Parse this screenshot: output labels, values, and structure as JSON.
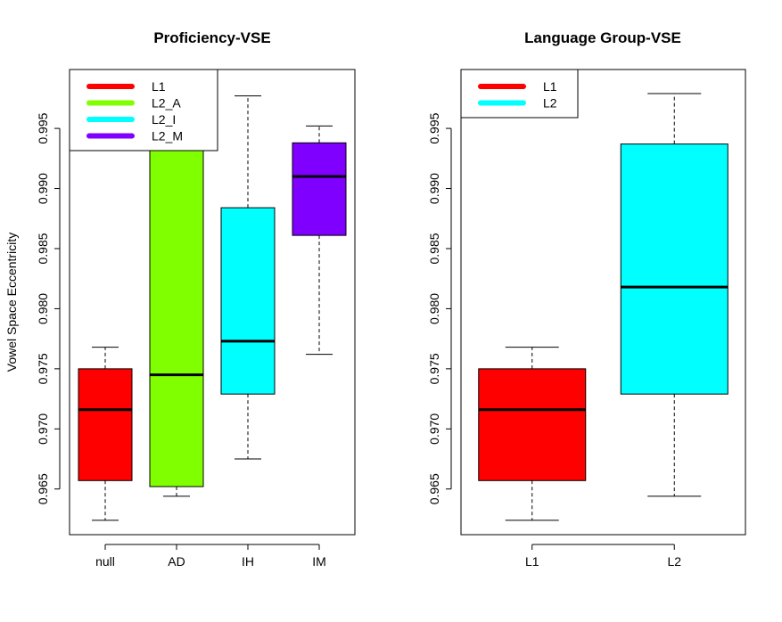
{
  "chart_data": [
    {
      "type": "box",
      "title": "Proficiency-VSE",
      "ylabel": "Vowel Space Eccentricity",
      "xlabel": "",
      "ylim": [
        0.9612,
        0.9999
      ],
      "yticks": [
        "0.965",
        "0.970",
        "0.975",
        "0.980",
        "0.985",
        "0.990",
        "0.995"
      ],
      "categories": [
        "null",
        "AD",
        "IH",
        "IM"
      ],
      "boxes": [
        {
          "category": "null",
          "color": "#ff0000",
          "min": 0.9624,
          "q1": 0.9657,
          "median": 0.9716,
          "q3": 0.975,
          "max": 0.9768
        },
        {
          "category": "AD",
          "color": "#80ff00",
          "min": 0.9644,
          "q1": 0.9652,
          "median": 0.9745,
          "q3": 0.9946,
          "max": 0.9978
        },
        {
          "category": "IH",
          "color": "#00ffff",
          "min": 0.9675,
          "q1": 0.9729,
          "median": 0.9773,
          "q3": 0.9884,
          "max": 0.9977
        },
        {
          "category": "IM",
          "color": "#8000ff",
          "min": 0.9762,
          "q1": 0.9861,
          "median": 0.991,
          "q3": 0.9938,
          "max": 0.9952
        }
      ],
      "legend": {
        "position": "top-left",
        "entries": [
          {
            "label": "L1",
            "color": "#ff0000"
          },
          {
            "label": "L2_A",
            "color": "#80ff00"
          },
          {
            "label": "L2_I",
            "color": "#00ffff"
          },
          {
            "label": "L2_M",
            "color": "#8000ff"
          }
        ]
      }
    },
    {
      "type": "box",
      "title": "Language Group-VSE",
      "ylabel": "",
      "xlabel": "",
      "ylim": [
        0.9612,
        0.9999
      ],
      "yticks": [
        "0.965",
        "0.970",
        "0.975",
        "0.980",
        "0.985",
        "0.990",
        "0.995"
      ],
      "categories": [
        "L1",
        "L2"
      ],
      "boxes": [
        {
          "category": "L1",
          "color": "#ff0000",
          "min": 0.9624,
          "q1": 0.9657,
          "median": 0.9716,
          "q3": 0.975,
          "max": 0.9768
        },
        {
          "category": "L2",
          "color": "#00ffff",
          "min": 0.9644,
          "q1": 0.9729,
          "median": 0.9818,
          "q3": 0.9937,
          "max": 0.9979
        }
      ],
      "legend": {
        "position": "top-left",
        "entries": [
          {
            "label": "L1",
            "color": "#ff0000"
          },
          {
            "label": "L2",
            "color": "#00ffff"
          }
        ]
      }
    }
  ]
}
